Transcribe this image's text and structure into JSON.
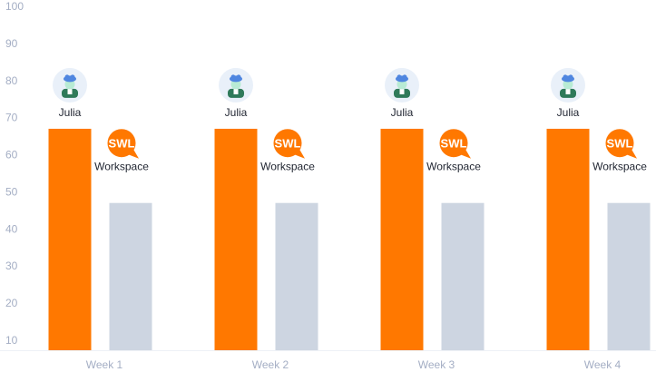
{
  "chart_data": {
    "type": "bar",
    "categories": [
      "Week 1",
      "Week 2",
      "Week 3",
      "Week 4"
    ],
    "series": [
      {
        "name": "Julia",
        "values": [
          67,
          67,
          67,
          67
        ],
        "color": "#ff7800",
        "icon": "avatar-icon"
      },
      {
        "name": "Workspace",
        "values": [
          47,
          47,
          47,
          47
        ],
        "color": "#cdd5e1",
        "icon": "swl-logo-icon",
        "logo_text": "SWL"
      }
    ],
    "title": "",
    "xlabel": "",
    "ylabel": "",
    "ylim": [
      10,
      100
    ],
    "yticks": [
      10,
      20,
      30,
      40,
      50,
      60,
      70,
      80,
      90,
      100
    ],
    "grid": false,
    "colors": {
      "axis_text": "#a4aec4",
      "logo": "#ff7800",
      "avatar_bg": "#e9f0f9"
    }
  }
}
